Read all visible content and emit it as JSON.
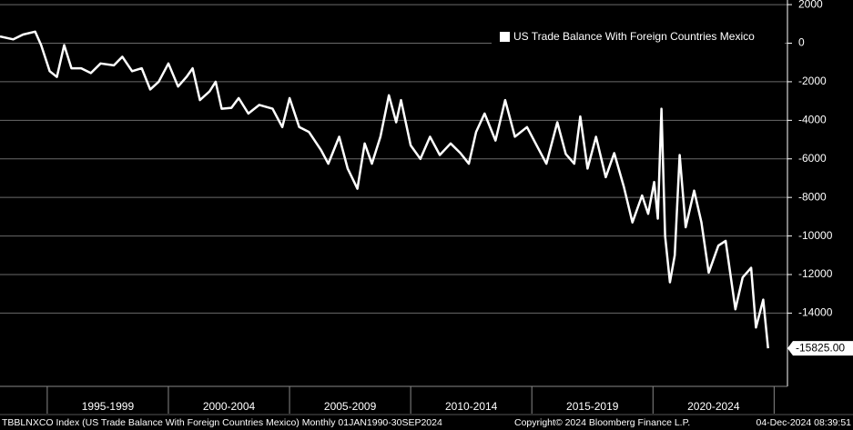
{
  "chart_data": {
    "type": "line",
    "series": [
      {
        "name": "US Trade Balance With Foreign Countries Mexico",
        "color": "#ffffff",
        "x": [
          1993.05,
          1993.6,
          1994.0,
          1994.5,
          1994.75,
          1995.1,
          1995.4,
          1995.7,
          1996.0,
          1996.4,
          1996.8,
          1997.2,
          1997.75,
          1998.1,
          1998.5,
          1998.9,
          1999.25,
          1999.6,
          2000.0,
          2000.4,
          2000.75,
          2001.0,
          2001.3,
          2001.7,
          2001.95,
          2002.2,
          2002.6,
          2002.9,
          2003.3,
          2003.75,
          2004.3,
          2004.7,
          2005.0,
          2005.4,
          2005.8,
          2006.3,
          2006.6,
          2007.05,
          2007.4,
          2007.8,
          2008.1,
          2008.4,
          2008.75,
          2009.1,
          2009.4,
          2009.6,
          2010.0,
          2010.4,
          2010.8,
          2011.2,
          2011.65,
          2012.05,
          2012.4,
          2012.7,
          2013.05,
          2013.5,
          2013.9,
          2014.3,
          2014.8,
          2015.2,
          2015.6,
          2016.05,
          2016.4,
          2016.75,
          2017.0,
          2017.3,
          2017.65,
          2018.05,
          2018.4,
          2018.8,
          2019.15,
          2019.55,
          2019.8,
          2020.05,
          2020.2,
          2020.35,
          2020.5,
          2020.7,
          2020.9,
          2021.1,
          2021.35,
          2021.7,
          2022.0,
          2022.3,
          2022.7,
          2023.0,
          2023.4,
          2023.7,
          2024.05,
          2024.25,
          2024.55,
          2024.75
        ],
        "values": [
          350,
          200,
          450,
          600,
          -100,
          -1450,
          -1750,
          -100,
          -1300,
          -1300,
          -1550,
          -1050,
          -1150,
          -700,
          -1450,
          -1300,
          -2400,
          -2000,
          -1050,
          -2250,
          -1750,
          -1300,
          -2950,
          -2500,
          -2000,
          -3400,
          -3350,
          -2850,
          -3650,
          -3200,
          -3400,
          -4350,
          -2850,
          -4350,
          -4600,
          -5550,
          -6250,
          -4850,
          -6500,
          -7550,
          -5200,
          -6250,
          -4850,
          -2700,
          -4100,
          -2950,
          -5300,
          -6000,
          -4850,
          -5800,
          -5200,
          -5700,
          -6250,
          -4600,
          -3650,
          -5050,
          -2950,
          -4850,
          -4350,
          -5300,
          -6250,
          -4100,
          -5750,
          -6250,
          -3800,
          -6500,
          -4850,
          -6950,
          -5700,
          -7450,
          -9300,
          -7900,
          -8850,
          -7200,
          -9100,
          -3400,
          -10000,
          -12400,
          -11000,
          -5800,
          -9550,
          -7650,
          -9300,
          -11900,
          -10500,
          -10250,
          -13800,
          -12150,
          -11650,
          -14750,
          -13300,
          -15825
        ],
        "value_labels": [
          null,
          null,
          null,
          null,
          null,
          null,
          null,
          null,
          null,
          null,
          null,
          null,
          null,
          null,
          null,
          null,
          null,
          null,
          null,
          null,
          null,
          null,
          null,
          null,
          null,
          null,
          null,
          null,
          null,
          null,
          null,
          null,
          null,
          null,
          null,
          null,
          null,
          null,
          null,
          null,
          null,
          null,
          null,
          null,
          null,
          null,
          null,
          null,
          null,
          null,
          null,
          null,
          null,
          null,
          null,
          null,
          null,
          null,
          null,
          null,
          null,
          null,
          null,
          null,
          null,
          null,
          null,
          null,
          null,
          null,
          null,
          null,
          null,
          null,
          null,
          null,
          null,
          null,
          null,
          null,
          null,
          null,
          null,
          null,
          null,
          null,
          null,
          null,
          null,
          null,
          null,
          "-15825.00"
        ]
      }
    ],
    "xlim": [
      1993.05,
      2025.55
    ],
    "xticks": [
      1995,
      2000,
      2005,
      2010,
      2015,
      2020,
      2025
    ],
    "period_labels": [
      "1995-1999",
      "2000-2004",
      "2005-2009",
      "2010-2014",
      "2015-2019",
      "2020-2024"
    ],
    "ylim": [
      -17800,
      2240
    ],
    "yticks": [
      2000,
      0,
      -2000,
      -4000,
      -6000,
      -8000,
      -10000,
      -12000,
      -14000
    ],
    "grid": true,
    "legend": "top-right",
    "footer": {
      "source": "TBBLNXCO Index (US Trade Balance With Foreign Countries Mexico)  Monthly 01JAN1990-30SEP2024",
      "copyright": "Copyright© 2024 Bloomberg Finance L.P.",
      "timestamp": "04-Dec-2024 08:39:51"
    }
  }
}
